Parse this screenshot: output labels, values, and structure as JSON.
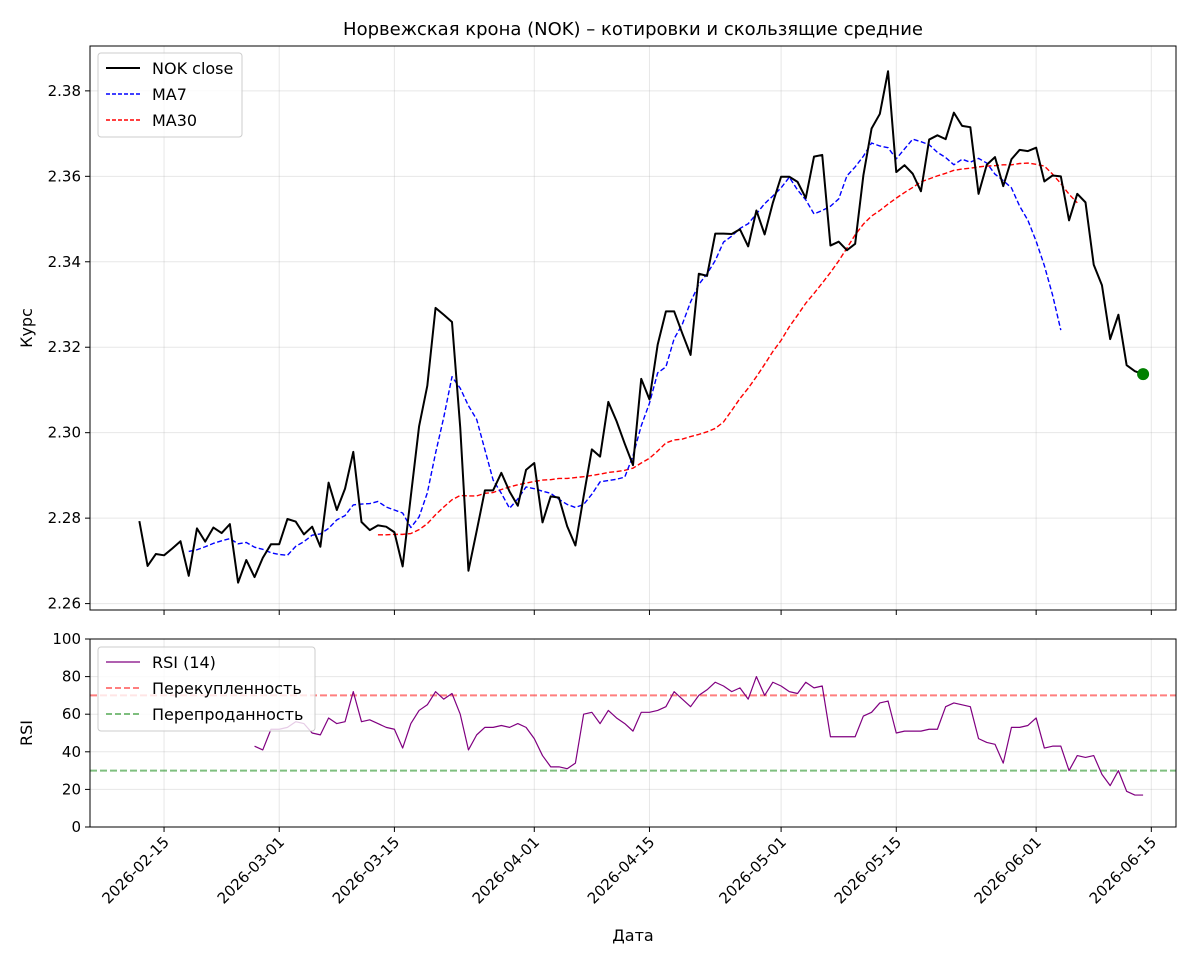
{
  "chart_data": [
    {
      "type": "line",
      "title": "Норвежская крона (NOK) – котировки и скользящие средние",
      "ylabel": "Курс",
      "ylim": [
        2.2585,
        2.3905
      ],
      "grid": true,
      "legend_position": "upper-left",
      "yticks": [
        "2.26",
        "2.28",
        "2.30",
        "2.32",
        "2.34",
        "2.36",
        "2.38"
      ],
      "ytick_values": [
        2.26,
        2.28,
        2.3,
        2.32,
        2.34,
        2.36,
        2.38
      ],
      "x_start": "2026-02-12",
      "x_step_days": 1,
      "last_point_marker": {
        "color": "#008000",
        "series": "NOK close"
      },
      "series": [
        {
          "name": "NOK close",
          "color": "#000000",
          "style": "solid",
          "values": [
            2.2793,
            2.2688,
            2.2716,
            2.2713,
            2.2729,
            2.2746,
            2.2665,
            2.2776,
            2.2745,
            2.2778,
            2.2765,
            2.2786,
            2.2649,
            2.2702,
            2.2662,
            2.2707,
            2.2739,
            2.2739,
            2.2798,
            2.2792,
            2.2762,
            2.278,
            2.2733,
            2.2883,
            2.2819,
            2.2869,
            2.2955,
            2.2791,
            2.2772,
            2.2783,
            2.278,
            2.2767,
            2.2687,
            2.2852,
            2.3015,
            2.311,
            2.3292,
            2.3276,
            2.3259,
            2.3012,
            2.2677,
            2.277,
            2.2865,
            2.2865,
            2.2906,
            2.2862,
            2.2829,
            2.2913,
            2.2929,
            2.279,
            2.2851,
            2.2848,
            2.2781,
            2.2736,
            2.2851,
            2.2961,
            2.2944,
            2.3072,
            2.3027,
            2.2974,
            2.2924,
            2.3126,
            2.3078,
            2.3206,
            2.3284,
            2.3284,
            2.3232,
            2.3182,
            2.3372,
            2.3367,
            2.3466,
            2.3466,
            2.3465,
            2.3476,
            2.3436,
            2.352,
            2.3464,
            2.3538,
            2.3599,
            2.3599,
            2.3587,
            2.3549,
            2.3646,
            2.365,
            2.3438,
            2.3447,
            2.3427,
            2.3442,
            2.3602,
            2.3712,
            2.3746,
            2.3846,
            2.361,
            2.3626,
            2.3606,
            2.3565,
            2.3686,
            2.3696,
            2.3687,
            2.3749,
            2.3718,
            2.3715,
            2.3559,
            2.3627,
            2.3645,
            2.3577,
            2.364,
            2.3662,
            2.3659,
            2.3667,
            2.3588,
            2.3602,
            2.36,
            2.3497,
            2.3559,
            2.3539,
            2.3393,
            2.3345,
            2.3219,
            2.3276,
            2.3158,
            2.3144,
            2.3137
          ]
        },
        {
          "name": "MA7",
          "color": "#0000ff",
          "style": "dashed",
          "values": [
            null,
            null,
            null,
            null,
            null,
            null,
            2.2722,
            2.2726,
            2.2733,
            2.2741,
            2.2747,
            2.2752,
            2.274,
            2.2743,
            2.2732,
            2.2727,
            2.2719,
            2.2715,
            2.2713,
            2.2734,
            2.2745,
            2.276,
            2.2763,
            2.2776,
            2.2796,
            2.2806,
            2.2831,
            2.2833,
            2.2834,
            2.2839,
            2.2826,
            2.2819,
            2.2812,
            2.2778,
            2.2803,
            2.2859,
            2.2952,
            2.3036,
            2.3131,
            2.3104,
            2.3063,
            2.3031,
            2.296,
            2.2889,
            2.2858,
            2.2823,
            2.2845,
            2.2873,
            2.2869,
            2.2863,
            2.2858,
            2.2844,
            2.2832,
            2.2825,
            2.2832,
            2.2856,
            2.2885,
            2.2888,
            2.2891,
            2.2896,
            2.2946,
            2.3016,
            2.3069,
            2.314,
            2.3154,
            2.322,
            2.3254,
            2.3306,
            2.3347,
            2.3372,
            2.3403,
            2.3446,
            2.346,
            2.3478,
            2.3489,
            2.3512,
            2.3536,
            2.3554,
            2.3573,
            2.3598,
            2.3568,
            2.3545,
            2.3512,
            2.352,
            2.353,
            2.3547,
            2.3601,
            2.3622,
            2.3647,
            2.3678,
            2.3671,
            2.3667,
            2.3641,
            2.3664,
            2.3687,
            2.3681,
            2.3674,
            2.3656,
            2.3644,
            2.3627,
            2.364,
            2.3633,
            2.3642,
            2.3631,
            2.3605,
            2.359,
            2.3573,
            2.353,
            2.3497,
            2.3448,
            2.3391,
            2.3322,
            2.324
          ]
        },
        {
          "name": "MA30",
          "color": "#ff0000",
          "style": "dashed",
          "values": [
            null,
            null,
            null,
            null,
            null,
            null,
            null,
            null,
            null,
            null,
            null,
            null,
            null,
            null,
            null,
            null,
            null,
            null,
            null,
            null,
            null,
            null,
            null,
            null,
            null,
            null,
            null,
            null,
            null,
            2.2761,
            2.2761,
            2.2762,
            2.2762,
            2.2764,
            2.2773,
            2.2787,
            2.2808,
            2.2826,
            2.2843,
            2.2853,
            2.2852,
            2.2852,
            2.2858,
            2.286,
            2.2867,
            2.2873,
            2.2878,
            2.2882,
            2.2886,
            2.2889,
            2.289,
            2.2893,
            2.2893,
            2.2895,
            2.2897,
            2.29,
            2.2903,
            2.2907,
            2.2909,
            2.2912,
            2.2917,
            2.2929,
            2.294,
            2.2957,
            2.2976,
            2.2983,
            2.2985,
            2.2991,
            2.2996,
            2.3002,
            2.301,
            2.3025,
            2.3052,
            2.308,
            2.3104,
            2.3131,
            2.316,
            2.319,
            2.3216,
            2.3248,
            2.3275,
            2.3303,
            2.3326,
            2.335,
            2.3375,
            2.3402,
            2.3432,
            2.3463,
            2.3488,
            2.3507,
            2.352,
            2.3535,
            2.3549,
            2.3562,
            2.3574,
            2.3587,
            2.3594,
            2.3601,
            2.3607,
            2.3614,
            2.3617,
            2.3619,
            2.3622,
            2.3624,
            2.3625,
            2.3627,
            2.3627,
            2.363,
            2.3631,
            2.3628,
            2.3624,
            2.3605,
            2.3583,
            2.3558,
            2.3538
          ]
        }
      ]
    },
    {
      "type": "line",
      "ylabel": "RSI",
      "xlabel": "Дата",
      "ylim": [
        0,
        100
      ],
      "grid": true,
      "legend_position": "upper-left",
      "yticks": [
        "0",
        "20",
        "40",
        "60",
        "80",
        "100"
      ],
      "ytick_values": [
        0,
        20,
        40,
        60,
        80,
        100
      ],
      "xticks": [
        "2026-02-15",
        "2026-03-01",
        "2026-03-15",
        "2026-04-01",
        "2026-04-15",
        "2026-05-01",
        "2026-05-15",
        "2026-06-01",
        "2026-06-15"
      ],
      "x_start": "2026-02-12",
      "x_step_days": 1,
      "series": [
        {
          "name": "RSI (14)",
          "color": "#800080",
          "style": "solid",
          "values": [
            null,
            null,
            null,
            null,
            null,
            null,
            null,
            null,
            null,
            null,
            null,
            null,
            null,
            null,
            43,
            41,
            52,
            52,
            53,
            56,
            55,
            50,
            49,
            58,
            55,
            56,
            72,
            56,
            57,
            55,
            53,
            52,
            42,
            55,
            62,
            65,
            72,
            68,
            71,
            60,
            41,
            49,
            53,
            53,
            54,
            53,
            55,
            53,
            47,
            38,
            32,
            32,
            31,
            34,
            60,
            61,
            55,
            62,
            58,
            55,
            51,
            61,
            61,
            62,
            64,
            72,
            68,
            64,
            70,
            73,
            77,
            75,
            72,
            74,
            68,
            80,
            70,
            77,
            75,
            72,
            71,
            77,
            74,
            75,
            48,
            48,
            48,
            48,
            59,
            61,
            66,
            67,
            50,
            51,
            51,
            51,
            52,
            52,
            64,
            66,
            65,
            64,
            47,
            45,
            44,
            34,
            53,
            53,
            54,
            58,
            42,
            43,
            43,
            30,
            38,
            37,
            38,
            28,
            22,
            30,
            19,
            17,
            17
          ]
        },
        {
          "name": "Перекупленность",
          "color": "#ff0000",
          "style": "dashed",
          "value": 70
        },
        {
          "name": "Перепроданность",
          "color": "#008000",
          "style": "dashed",
          "value": 30
        }
      ]
    }
  ]
}
